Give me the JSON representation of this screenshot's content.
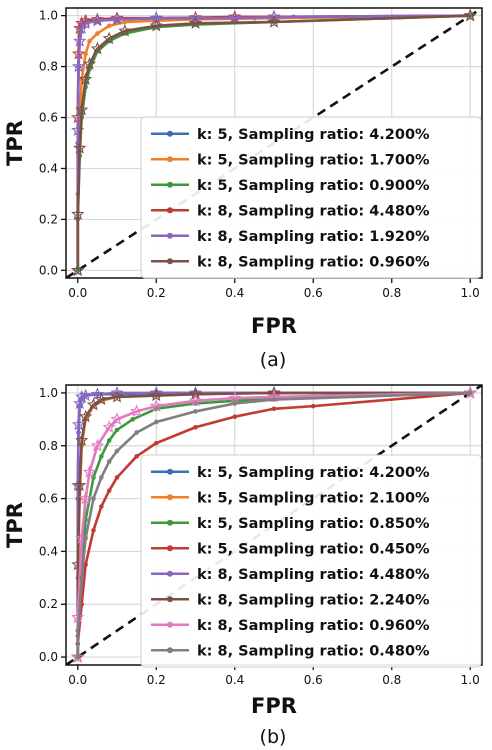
{
  "chart_data": [
    {
      "type": "line",
      "caption": "(a)",
      "xlabel": "FPR",
      "ylabel": "TPR",
      "xlim": [
        -0.03,
        1.03
      ],
      "ylim": [
        -0.03,
        1.03
      ],
      "xticks": [
        "0.0",
        "0.2",
        "0.4",
        "0.6",
        "0.8",
        "1.0"
      ],
      "yticks": [
        "0.0",
        "0.2",
        "0.4",
        "0.6",
        "0.8",
        "1.0"
      ],
      "grid": true,
      "legend_position": "bottom-right",
      "diagonal": "dashed black reference line from (0,0) to (1,1)",
      "series": [
        {
          "name": "k: 5, Sampling ratio: 4.200%",
          "color": "#3b6fb6",
          "marker": "circle",
          "x": [
            0,
            0,
            0.002,
            0.005,
            0.01,
            0.02,
            0.05,
            0.1,
            0.2,
            0.3,
            0.45,
            0.55,
            1.0
          ],
          "y": [
            0,
            0.5,
            0.8,
            0.92,
            0.96,
            0.975,
            0.98,
            0.985,
            0.99,
            0.99,
            0.99,
            0.995,
            1.0
          ]
        },
        {
          "name": "k: 5, Sampling ratio: 1.700%",
          "color": "#f07f2a",
          "marker": "circle",
          "x": [
            0,
            0,
            0.005,
            0.01,
            0.02,
            0.03,
            0.05,
            0.08,
            0.12,
            0.2,
            0.3,
            0.5,
            1.0
          ],
          "y": [
            0,
            0.3,
            0.6,
            0.75,
            0.85,
            0.9,
            0.93,
            0.96,
            0.975,
            0.98,
            0.985,
            0.99,
            1.0
          ]
        },
        {
          "name": "k: 5, Sampling ratio: 0.900%",
          "color": "#3c9a3c",
          "marker": "circle",
          "x": [
            0,
            0,
            0.005,
            0.01,
            0.02,
            0.03,
            0.05,
            0.08,
            0.12,
            0.2,
            0.3,
            0.5,
            1.0
          ],
          "y": [
            0,
            0.2,
            0.45,
            0.6,
            0.72,
            0.79,
            0.86,
            0.9,
            0.93,
            0.955,
            0.965,
            0.975,
            1.0
          ]
        },
        {
          "name": "k: 8, Sampling ratio: 4.480%",
          "color": "#c23b33",
          "marker": "star",
          "x": [
            0,
            0,
            0.002,
            0.005,
            0.01,
            0.02,
            0.05,
            0.1,
            0.2,
            0.3,
            0.4,
            0.5,
            1.0
          ],
          "y": [
            0,
            0.6,
            0.85,
            0.95,
            0.97,
            0.98,
            0.985,
            0.99,
            0.99,
            0.992,
            0.995,
            0.995,
            1.0
          ]
        },
        {
          "name": "k: 8, Sampling ratio: 1.920%",
          "color": "#8a66c2",
          "marker": "star",
          "x": [
            0,
            0,
            0.002,
            0.005,
            0.01,
            0.02,
            0.05,
            0.1,
            0.2,
            0.3,
            0.4,
            0.5,
            1.0
          ],
          "y": [
            0,
            0.55,
            0.8,
            0.9,
            0.95,
            0.97,
            0.98,
            0.985,
            0.99,
            0.99,
            0.99,
            0.995,
            1.0
          ]
        },
        {
          "name": "k: 8, Sampling ratio: 0.960%",
          "color": "#7a5146",
          "marker": "star",
          "x": [
            0,
            0,
            0.005,
            0.01,
            0.02,
            0.03,
            0.05,
            0.08,
            0.12,
            0.2,
            0.3,
            0.5,
            1.0
          ],
          "y": [
            0,
            0.22,
            0.48,
            0.63,
            0.75,
            0.81,
            0.87,
            0.91,
            0.94,
            0.96,
            0.97,
            0.975,
            1.0
          ]
        }
      ]
    },
    {
      "type": "line",
      "caption": "(b)",
      "xlabel": "FPR",
      "ylabel": "TPR",
      "xlim": [
        -0.03,
        1.03
      ],
      "ylim": [
        -0.03,
        1.03
      ],
      "xticks": [
        "0.0",
        "0.2",
        "0.4",
        "0.6",
        "0.8",
        "1.0"
      ],
      "yticks": [
        "0.0",
        "0.2",
        "0.4",
        "0.6",
        "0.8",
        "1.0"
      ],
      "grid": true,
      "legend_position": "bottom-right",
      "diagonal": "dashed black reference line from (0,0) to (1,1)",
      "series": [
        {
          "name": "k: 5, Sampling ratio: 4.200%",
          "color": "#3b6fb6",
          "marker": "circle",
          "x": [
            0,
            0,
            0.002,
            0.005,
            0.01,
            0.02,
            0.05,
            0.1,
            0.2,
            0.3,
            0.5,
            1.0
          ],
          "y": [
            0,
            0.6,
            0.85,
            0.95,
            0.98,
            0.99,
            0.995,
            0.995,
            1.0,
            1.0,
            1.0,
            1.0
          ]
        },
        {
          "name": "k: 5, Sampling ratio: 2.100%",
          "color": "#f07f2a",
          "marker": "circle",
          "x": [
            0,
            0,
            0.005,
            0.01,
            0.02,
            0.04,
            0.06,
            0.1,
            0.2,
            0.3,
            0.5,
            1.0
          ],
          "y": [
            0,
            0.3,
            0.6,
            0.8,
            0.9,
            0.95,
            0.97,
            0.985,
            0.99,
            0.995,
            1.0,
            1.0
          ]
        },
        {
          "name": "k: 5, Sampling ratio: 0.850%",
          "color": "#3c9a3c",
          "marker": "circle",
          "x": [
            0,
            0,
            0.01,
            0.02,
            0.04,
            0.06,
            0.08,
            0.1,
            0.14,
            0.2,
            0.3,
            0.4,
            0.5,
            1.0
          ],
          "y": [
            0,
            0.1,
            0.35,
            0.52,
            0.68,
            0.76,
            0.82,
            0.86,
            0.9,
            0.94,
            0.96,
            0.97,
            0.98,
            1.0
          ]
        },
        {
          "name": "k: 5, Sampling ratio: 0.450%",
          "color": "#c23b33",
          "marker": "circle",
          "x": [
            0,
            0,
            0.01,
            0.02,
            0.04,
            0.06,
            0.08,
            0.1,
            0.15,
            0.2,
            0.3,
            0.4,
            0.5,
            0.6,
            1.0
          ],
          "y": [
            0,
            0.05,
            0.2,
            0.35,
            0.48,
            0.57,
            0.63,
            0.68,
            0.76,
            0.81,
            0.87,
            0.91,
            0.94,
            0.95,
            1.0
          ]
        },
        {
          "name": "k: 8, Sampling ratio: 4.480%",
          "color": "#8a66c2",
          "marker": "star",
          "x": [
            0,
            0,
            0.002,
            0.005,
            0.01,
            0.02,
            0.05,
            0.1,
            0.2,
            0.3,
            0.5,
            1.0
          ],
          "y": [
            0,
            0.65,
            0.88,
            0.96,
            0.985,
            0.99,
            0.995,
            1.0,
            1.0,
            1.0,
            1.0,
            1.0
          ]
        },
        {
          "name": "k: 8, Sampling ratio: 2.240%",
          "color": "#7a5146",
          "marker": "star",
          "x": [
            0,
            0,
            0.005,
            0.01,
            0.02,
            0.04,
            0.06,
            0.1,
            0.2,
            0.3,
            0.5,
            1.0
          ],
          "y": [
            0,
            0.35,
            0.65,
            0.82,
            0.91,
            0.955,
            0.975,
            0.985,
            0.99,
            0.995,
            1.0,
            1.0
          ]
        },
        {
          "name": "k: 8, Sampling ratio: 0.960%",
          "color": "#e377c2",
          "marker": "star",
          "x": [
            0,
            0,
            0.01,
            0.02,
            0.03,
            0.05,
            0.08,
            0.1,
            0.15,
            0.2,
            0.3,
            0.4,
            0.5,
            1.0
          ],
          "y": [
            0,
            0.15,
            0.45,
            0.6,
            0.7,
            0.8,
            0.87,
            0.9,
            0.93,
            0.95,
            0.97,
            0.98,
            0.985,
            1.0
          ]
        },
        {
          "name": "k: 8, Sampling ratio: 0.480%",
          "color": "#7f7f7f",
          "marker": "circle",
          "x": [
            0,
            0,
            0.01,
            0.02,
            0.04,
            0.06,
            0.08,
            0.1,
            0.15,
            0.2,
            0.3,
            0.4,
            0.5,
            1.0
          ],
          "y": [
            0,
            0.08,
            0.3,
            0.45,
            0.6,
            0.68,
            0.74,
            0.78,
            0.85,
            0.89,
            0.93,
            0.96,
            0.975,
            1.0
          ]
        }
      ]
    }
  ]
}
